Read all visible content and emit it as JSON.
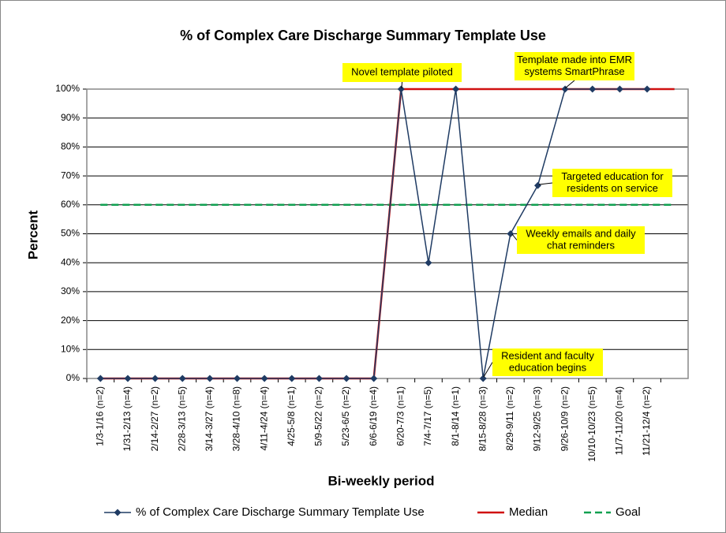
{
  "chart_data": {
    "type": "line",
    "title": "% of Complex Care Discharge Summary Template Use",
    "x_label": "Bi-weekly period",
    "y_label": "Percent",
    "categories": [
      "1/3-1/16 (n=2)",
      "1/31-2/13 (n=4)",
      "2/14-2/27 (n=2)",
      "2/28-3/13 (n=5)",
      "3/14-3/27 (n=4)",
      "3/28-4/10 (n=8)",
      "4/11-4/24 (n=4)",
      "4/25-5/8 (n=1)",
      "5/9-5/22 (n=2)",
      "5/23-6/5 (n=2)",
      "6/6-6/19 (n=4)",
      "6/20-7/3 (n=1)",
      "7/4-7/17 (n=5)",
      "8/1-8/14 (n=1)",
      "8/15-8/28 (n=3)",
      "8/29-9/11 (n=2)",
      "9/12-9/25 (n=3)",
      "9/26-10/9 (n=2)",
      "10/10-10/23 (n=5)",
      "11/7-11/20 (n=4)",
      "11/21-12/4 (n=2)",
      null
    ],
    "series": [
      {
        "name": "% of Complex Care Discharge Summary Template Use",
        "color": "#1f3b63",
        "marker": "diamond",
        "values": [
          0,
          0,
          0,
          0,
          0,
          0,
          0,
          0,
          0,
          0,
          0,
          100,
          40,
          100,
          0,
          50,
          66.7,
          100,
          100,
          100,
          100,
          null
        ]
      },
      {
        "name": "Median",
        "color": "#d01010",
        "values": [
          0,
          0,
          0,
          0,
          0,
          0,
          0,
          0,
          0,
          0,
          0,
          100,
          100,
          100,
          100,
          100,
          100,
          100,
          100,
          100,
          100,
          100
        ]
      },
      {
        "name": "Goal",
        "color": "#10a050",
        "dashed": true,
        "values": [
          60,
          60,
          60,
          60,
          60,
          60,
          60,
          60,
          60,
          60,
          60,
          60,
          60,
          60,
          60,
          60,
          60,
          60,
          60,
          60,
          60,
          60
        ]
      }
    ],
    "ylim": [
      0,
      100
    ],
    "yticks": [
      {
        "value": 0,
        "label": "0%"
      },
      {
        "value": 10,
        "label": "10%"
      },
      {
        "value": 20,
        "label": "20%"
      },
      {
        "value": 30,
        "label": "30%"
      },
      {
        "value": 40,
        "label": "40%"
      },
      {
        "value": 50,
        "label": "50%"
      },
      {
        "value": 60,
        "label": "60%"
      },
      {
        "value": 70,
        "label": "70%"
      },
      {
        "value": 80,
        "label": "80%"
      },
      {
        "value": 90,
        "label": "90%"
      },
      {
        "value": 100,
        "label": "100%"
      }
    ],
    "grid": true,
    "legend": "bottom",
    "annotations": [
      {
        "lines": [
          "Novel template piloted"
        ]
      },
      {
        "lines": [
          "Template made into EMR",
          "systems SmartPhrase"
        ]
      },
      {
        "lines": [
          "Targeted education for",
          "residents on service"
        ]
      },
      {
        "lines": [
          "Weekly emails and daily",
          "chat reminders"
        ]
      },
      {
        "lines": [
          "Resident and faculty",
          "education begins"
        ]
      }
    ]
  }
}
